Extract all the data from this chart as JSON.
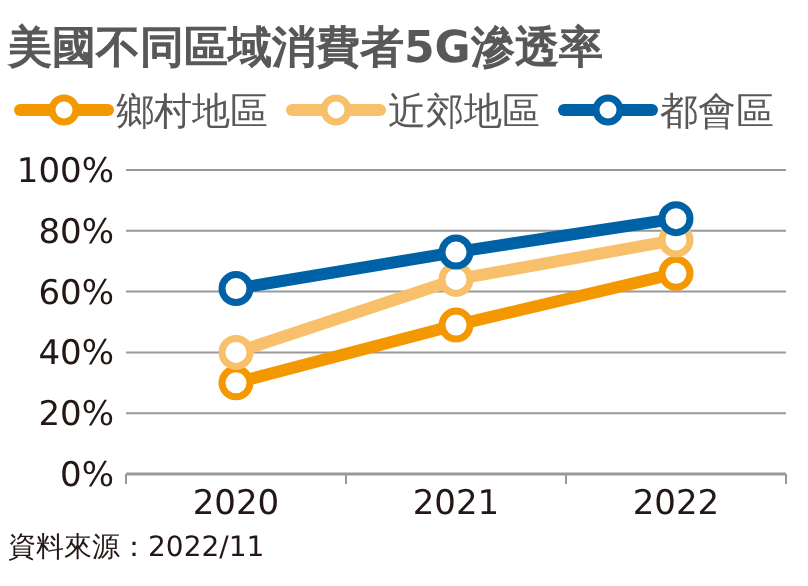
{
  "chart_data": {
    "type": "line",
    "title": "美國不同區域消費者5G滲透率",
    "categories": [
      "2020",
      "2021",
      "2022"
    ],
    "series": [
      {
        "name": "鄉村地區",
        "color": "#f39800",
        "values": [
          30,
          49,
          66
        ]
      },
      {
        "name": "近郊地區",
        "color": "#f8c06a",
        "values": [
          40,
          64,
          77
        ]
      },
      {
        "name": "都會區",
        "color": "#0062a6",
        "values": [
          61,
          73,
          84
        ]
      }
    ],
    "ylim": [
      0,
      100
    ],
    "yticks": [
      {
        "value": 0,
        "label": "0%"
      },
      {
        "value": 20,
        "label": "20%"
      },
      {
        "value": 40,
        "label": "40%"
      },
      {
        "value": 60,
        "label": "60%"
      },
      {
        "value": 80,
        "label": "80%"
      },
      {
        "value": 100,
        "label": "100%"
      }
    ],
    "grid": "y",
    "legend": "top",
    "marker": "circle",
    "line_style": "solid",
    "annotations": [
      "資料來源：2022/11"
    ]
  }
}
